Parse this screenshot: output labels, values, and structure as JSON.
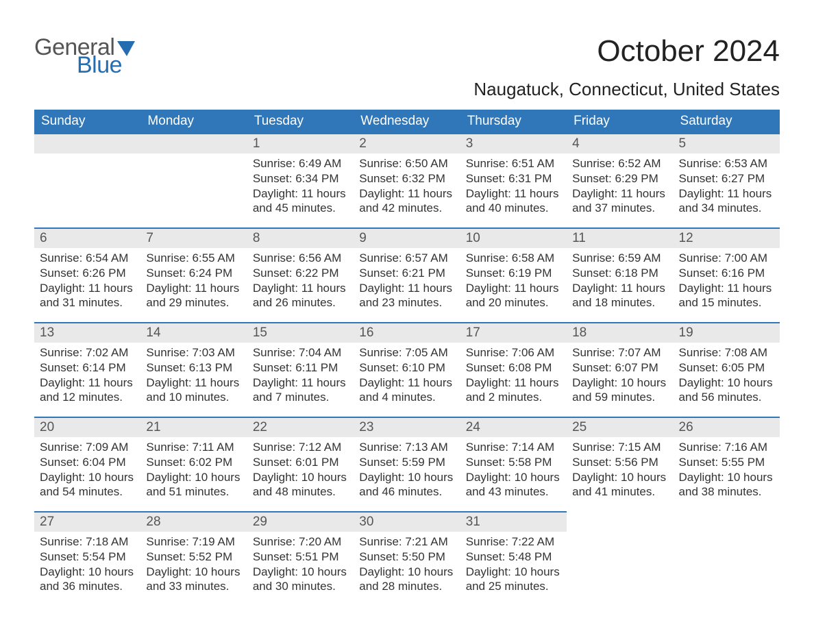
{
  "brand": {
    "general": "General",
    "blue": "Blue",
    "accent_color": "#246db0"
  },
  "title": "October 2024",
  "subtitle": "Naugatuck, Connecticut, United States",
  "header_bg": "#2f77b9",
  "daynum_bg": "#e9e9e9",
  "border_color": "#2f77b9",
  "day_headers": [
    "Sunday",
    "Monday",
    "Tuesday",
    "Wednesday",
    "Thursday",
    "Friday",
    "Saturday"
  ],
  "weeks": [
    [
      null,
      null,
      {
        "n": "1",
        "sunrise": "6:49 AM",
        "sunset": "6:34 PM",
        "daylight": "11 hours and 45 minutes."
      },
      {
        "n": "2",
        "sunrise": "6:50 AM",
        "sunset": "6:32 PM",
        "daylight": "11 hours and 42 minutes."
      },
      {
        "n": "3",
        "sunrise": "6:51 AM",
        "sunset": "6:31 PM",
        "daylight": "11 hours and 40 minutes."
      },
      {
        "n": "4",
        "sunrise": "6:52 AM",
        "sunset": "6:29 PM",
        "daylight": "11 hours and 37 minutes."
      },
      {
        "n": "5",
        "sunrise": "6:53 AM",
        "sunset": "6:27 PM",
        "daylight": "11 hours and 34 minutes."
      }
    ],
    [
      {
        "n": "6",
        "sunrise": "6:54 AM",
        "sunset": "6:26 PM",
        "daylight": "11 hours and 31 minutes."
      },
      {
        "n": "7",
        "sunrise": "6:55 AM",
        "sunset": "6:24 PM",
        "daylight": "11 hours and 29 minutes."
      },
      {
        "n": "8",
        "sunrise": "6:56 AM",
        "sunset": "6:22 PM",
        "daylight": "11 hours and 26 minutes."
      },
      {
        "n": "9",
        "sunrise": "6:57 AM",
        "sunset": "6:21 PM",
        "daylight": "11 hours and 23 minutes."
      },
      {
        "n": "10",
        "sunrise": "6:58 AM",
        "sunset": "6:19 PM",
        "daylight": "11 hours and 20 minutes."
      },
      {
        "n": "11",
        "sunrise": "6:59 AM",
        "sunset": "6:18 PM",
        "daylight": "11 hours and 18 minutes."
      },
      {
        "n": "12",
        "sunrise": "7:00 AM",
        "sunset": "6:16 PM",
        "daylight": "11 hours and 15 minutes."
      }
    ],
    [
      {
        "n": "13",
        "sunrise": "7:02 AM",
        "sunset": "6:14 PM",
        "daylight": "11 hours and 12 minutes."
      },
      {
        "n": "14",
        "sunrise": "7:03 AM",
        "sunset": "6:13 PM",
        "daylight": "11 hours and 10 minutes."
      },
      {
        "n": "15",
        "sunrise": "7:04 AM",
        "sunset": "6:11 PM",
        "daylight": "11 hours and 7 minutes."
      },
      {
        "n": "16",
        "sunrise": "7:05 AM",
        "sunset": "6:10 PM",
        "daylight": "11 hours and 4 minutes."
      },
      {
        "n": "17",
        "sunrise": "7:06 AM",
        "sunset": "6:08 PM",
        "daylight": "11 hours and 2 minutes."
      },
      {
        "n": "18",
        "sunrise": "7:07 AM",
        "sunset": "6:07 PM",
        "daylight": "10 hours and 59 minutes."
      },
      {
        "n": "19",
        "sunrise": "7:08 AM",
        "sunset": "6:05 PM",
        "daylight": "10 hours and 56 minutes."
      }
    ],
    [
      {
        "n": "20",
        "sunrise": "7:09 AM",
        "sunset": "6:04 PM",
        "daylight": "10 hours and 54 minutes."
      },
      {
        "n": "21",
        "sunrise": "7:11 AM",
        "sunset": "6:02 PM",
        "daylight": "10 hours and 51 minutes."
      },
      {
        "n": "22",
        "sunrise": "7:12 AM",
        "sunset": "6:01 PM",
        "daylight": "10 hours and 48 minutes."
      },
      {
        "n": "23",
        "sunrise": "7:13 AM",
        "sunset": "5:59 PM",
        "daylight": "10 hours and 46 minutes."
      },
      {
        "n": "24",
        "sunrise": "7:14 AM",
        "sunset": "5:58 PM",
        "daylight": "10 hours and 43 minutes."
      },
      {
        "n": "25",
        "sunrise": "7:15 AM",
        "sunset": "5:56 PM",
        "daylight": "10 hours and 41 minutes."
      },
      {
        "n": "26",
        "sunrise": "7:16 AM",
        "sunset": "5:55 PM",
        "daylight": "10 hours and 38 minutes."
      }
    ],
    [
      {
        "n": "27",
        "sunrise": "7:18 AM",
        "sunset": "5:54 PM",
        "daylight": "10 hours and 36 minutes."
      },
      {
        "n": "28",
        "sunrise": "7:19 AM",
        "sunset": "5:52 PM",
        "daylight": "10 hours and 33 minutes."
      },
      {
        "n": "29",
        "sunrise": "7:20 AM",
        "sunset": "5:51 PM",
        "daylight": "10 hours and 30 minutes."
      },
      {
        "n": "30",
        "sunrise": "7:21 AM",
        "sunset": "5:50 PM",
        "daylight": "10 hours and 28 minutes."
      },
      {
        "n": "31",
        "sunrise": "7:22 AM",
        "sunset": "5:48 PM",
        "daylight": "10 hours and 25 minutes."
      },
      null,
      null
    ]
  ],
  "labels": {
    "sunrise": "Sunrise:",
    "sunset": "Sunset:",
    "daylight": "Daylight:"
  }
}
